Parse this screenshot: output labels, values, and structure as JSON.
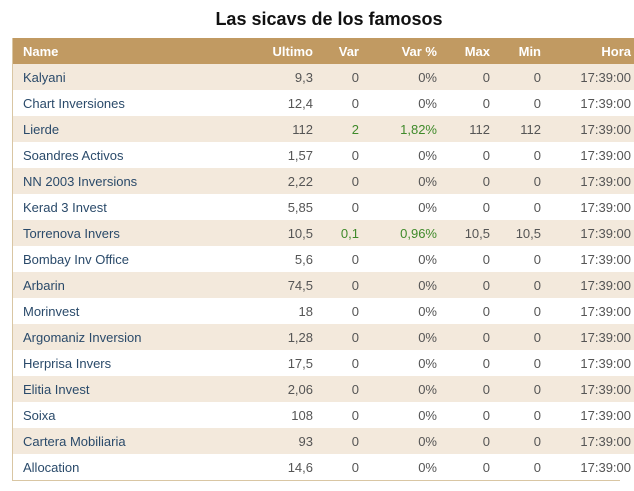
{
  "page_title": "Las sicavs de los famosos",
  "colors": {
    "header_bg": "#c19a62",
    "row_alt_bg": "#f3e9dc",
    "positive": "#3f8a2a",
    "name_text": "#2a4a6a"
  },
  "table": {
    "headers": [
      "Name",
      "Ultimo",
      "Var",
      "Var %",
      "Max",
      "Min",
      "Hora"
    ],
    "rows": [
      {
        "name": "Kalyani",
        "ultimo": "9,3",
        "var": "0",
        "var_pct": "0%",
        "max": "0",
        "min": "0",
        "hora": "17:39:00",
        "positive": false
      },
      {
        "name": "Chart Inversiones",
        "ultimo": "12,4",
        "var": "0",
        "var_pct": "0%",
        "max": "0",
        "min": "0",
        "hora": "17:39:00",
        "positive": false
      },
      {
        "name": "Lierde",
        "ultimo": "112",
        "var": "2",
        "var_pct": "1,82%",
        "max": "112",
        "min": "112",
        "hora": "17:39:00",
        "positive": true
      },
      {
        "name": "Soandres Activos",
        "ultimo": "1,57",
        "var": "0",
        "var_pct": "0%",
        "max": "0",
        "min": "0",
        "hora": "17:39:00",
        "positive": false
      },
      {
        "name": "NN 2003 Inversions",
        "ultimo": "2,22",
        "var": "0",
        "var_pct": "0%",
        "max": "0",
        "min": "0",
        "hora": "17:39:00",
        "positive": false
      },
      {
        "name": "Kerad 3 Invest",
        "ultimo": "5,85",
        "var": "0",
        "var_pct": "0%",
        "max": "0",
        "min": "0",
        "hora": "17:39:00",
        "positive": false
      },
      {
        "name": "Torrenova Invers",
        "ultimo": "10,5",
        "var": "0,1",
        "var_pct": "0,96%",
        "max": "10,5",
        "min": "10,5",
        "hora": "17:39:00",
        "positive": true
      },
      {
        "name": "Bombay Inv Office",
        "ultimo": "5,6",
        "var": "0",
        "var_pct": "0%",
        "max": "0",
        "min": "0",
        "hora": "17:39:00",
        "positive": false
      },
      {
        "name": "Arbarin",
        "ultimo": "74,5",
        "var": "0",
        "var_pct": "0%",
        "max": "0",
        "min": "0",
        "hora": "17:39:00",
        "positive": false
      },
      {
        "name": "Morinvest",
        "ultimo": "18",
        "var": "0",
        "var_pct": "0%",
        "max": "0",
        "min": "0",
        "hora": "17:39:00",
        "positive": false
      },
      {
        "name": "Argomaniz Inversion",
        "ultimo": "1,28",
        "var": "0",
        "var_pct": "0%",
        "max": "0",
        "min": "0",
        "hora": "17:39:00",
        "positive": false
      },
      {
        "name": "Herprisa Invers",
        "ultimo": "17,5",
        "var": "0",
        "var_pct": "0%",
        "max": "0",
        "min": "0",
        "hora": "17:39:00",
        "positive": false
      },
      {
        "name": "Elitia Invest",
        "ultimo": "2,06",
        "var": "0",
        "var_pct": "0%",
        "max": "0",
        "min": "0",
        "hora": "17:39:00",
        "positive": false
      },
      {
        "name": "Soixa",
        "ultimo": "108",
        "var": "0",
        "var_pct": "0%",
        "max": "0",
        "min": "0",
        "hora": "17:39:00",
        "positive": false
      },
      {
        "name": "Cartera Mobiliaria",
        "ultimo": "93",
        "var": "0",
        "var_pct": "0%",
        "max": "0",
        "min": "0",
        "hora": "17:39:00",
        "positive": false
      },
      {
        "name": "Allocation",
        "ultimo": "14,6",
        "var": "0",
        "var_pct": "0%",
        "max": "0",
        "min": "0",
        "hora": "17:39:00",
        "positive": false
      }
    ]
  }
}
